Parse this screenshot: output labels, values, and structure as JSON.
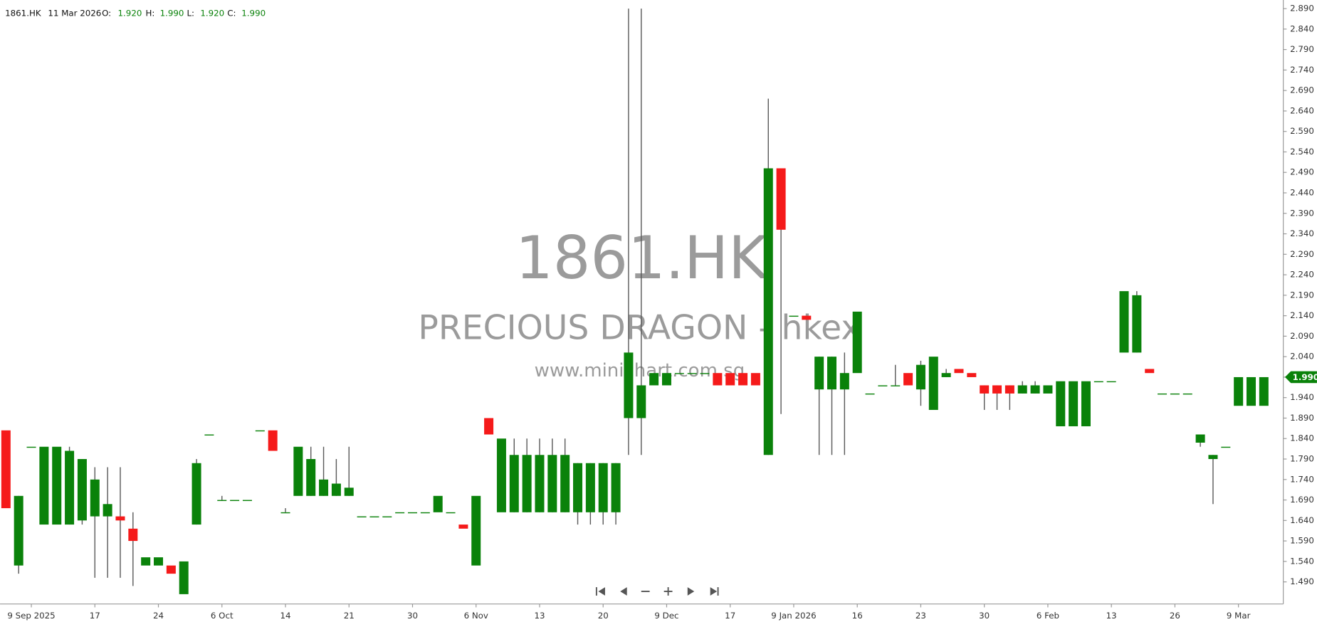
{
  "header": {
    "symbol": "1861.HK",
    "date": "11 Mar 2026",
    "open_label": "O:",
    "open": "1.920",
    "high_label": "H:",
    "high": "1.990",
    "low_label": "L:",
    "low": "1.920",
    "close_label": "C:",
    "close": "1.990"
  },
  "watermark": {
    "symbol": "1861.HK",
    "name": "PRECIOUS DRAGON - hkex",
    "site": "www.minichart.com.sg"
  },
  "chart_data": {
    "type": "candlestick",
    "categories": [
      null,
      null,
      "9 Sep 2025",
      null,
      null,
      null,
      null,
      "17",
      null,
      null,
      null,
      null,
      "24",
      null,
      null,
      null,
      null,
      "6 Oct",
      null,
      null,
      null,
      null,
      "14",
      null,
      null,
      null,
      null,
      "21",
      null,
      null,
      null,
      null,
      "30",
      null,
      null,
      null,
      null,
      "6 Nov",
      null,
      null,
      null,
      null,
      "13",
      null,
      null,
      null,
      null,
      "20",
      null,
      null,
      null,
      null,
      "9 Dec",
      null,
      null,
      null,
      null,
      "17",
      null,
      null,
      null,
      null,
      "9 Jan 2026",
      null,
      null,
      null,
      null,
      "16",
      null,
      null,
      null,
      null,
      "23",
      null,
      null,
      null,
      null,
      "30",
      null,
      null,
      null,
      null,
      "6 Feb",
      null,
      null,
      null,
      null,
      "13",
      null,
      null,
      null,
      null,
      "26",
      null,
      null,
      null,
      null,
      "9 Mar",
      null,
      null
    ],
    "open": [
      1.86,
      1.53,
      1.82,
      1.63,
      1.63,
      1.63,
      1.64,
      1.65,
      1.65,
      1.65,
      1.62,
      1.53,
      1.53,
      1.53,
      1.46,
      1.63,
      1.85,
      1.69,
      1.69,
      1.69,
      1.86,
      1.86,
      1.66,
      1.7,
      1.7,
      1.7,
      1.7,
      1.7,
      1.65,
      1.65,
      1.65,
      1.66,
      1.66,
      1.66,
      1.66,
      1.66,
      1.63,
      1.53,
      1.89,
      1.66,
      1.66,
      1.66,
      1.66,
      1.66,
      1.66,
      1.66,
      1.66,
      1.66,
      1.66,
      1.89,
      1.89,
      1.97,
      1.97,
      2.0,
      2.0,
      2.0,
      2.0,
      2.0,
      2.0,
      2.0,
      1.8,
      2.5,
      2.14,
      2.14,
      1.96,
      1.96,
      1.96,
      2.0,
      1.95,
      1.97,
      1.97,
      2.0,
      1.96,
      1.91,
      1.99,
      2.01,
      2.0,
      1.97,
      1.97,
      1.97,
      1.95,
      1.95,
      1.95,
      1.87,
      1.87,
      1.87,
      1.98,
      1.98,
      2.05,
      2.05,
      2.01,
      1.95,
      1.95,
      1.95,
      1.83,
      1.79,
      1.82,
      1.92,
      1.92,
      1.92
    ],
    "high": [
      1.86,
      1.7,
      1.82,
      1.82,
      1.82,
      1.82,
      1.79,
      1.77,
      1.77,
      1.77,
      1.66,
      1.55,
      1.55,
      1.53,
      1.54,
      1.79,
      1.85,
      1.7,
      1.69,
      1.69,
      1.86,
      1.86,
      1.67,
      1.82,
      1.82,
      1.82,
      1.79,
      1.82,
      1.65,
      1.65,
      1.65,
      1.66,
      1.66,
      1.66,
      1.7,
      1.66,
      1.63,
      1.7,
      1.89,
      1.84,
      1.84,
      1.84,
      1.84,
      1.84,
      1.84,
      1.78,
      1.78,
      1.78,
      1.78,
      2.89,
      2.89,
      2.0,
      2.0,
      2.0,
      2.0,
      2.0,
      2.0,
      2.0,
      2.0,
      2.0,
      2.67,
      2.5,
      2.14,
      2.14,
      2.04,
      2.04,
      2.05,
      2.15,
      1.95,
      1.97,
      2.02,
      2.0,
      2.03,
      2.04,
      2.01,
      2.01,
      2.0,
      1.97,
      1.97,
      1.97,
      1.98,
      1.98,
      1.97,
      1.98,
      1.98,
      1.98,
      1.98,
      1.98,
      2.2,
      2.2,
      2.01,
      1.95,
      1.95,
      1.95,
      1.85,
      1.8,
      1.82,
      1.99,
      1.99,
      1.99
    ],
    "low": [
      1.67,
      1.51,
      1.82,
      1.63,
      1.63,
      1.63,
      1.63,
      1.5,
      1.5,
      1.5,
      1.48,
      1.53,
      1.53,
      1.51,
      1.46,
      1.63,
      1.85,
      1.69,
      1.69,
      1.69,
      1.86,
      1.81,
      1.66,
      1.7,
      1.7,
      1.7,
      1.7,
      1.7,
      1.65,
      1.65,
      1.65,
      1.66,
      1.66,
      1.66,
      1.66,
      1.66,
      1.62,
      1.53,
      1.85,
      1.66,
      1.66,
      1.66,
      1.66,
      1.66,
      1.66,
      1.63,
      1.63,
      1.63,
      1.63,
      1.8,
      1.8,
      1.97,
      1.97,
      2.0,
      2.0,
      2.0,
      1.97,
      1.97,
      1.97,
      1.97,
      1.8,
      1.9,
      2.14,
      2.13,
      1.8,
      1.8,
      1.8,
      2.0,
      1.95,
      1.97,
      1.97,
      1.97,
      1.92,
      1.91,
      1.99,
      2.0,
      1.99,
      1.91,
      1.91,
      1.91,
      1.95,
      1.95,
      1.95,
      1.87,
      1.87,
      1.87,
      1.98,
      1.98,
      2.05,
      2.05,
      2.0,
      1.95,
      1.95,
      1.95,
      1.82,
      1.68,
      1.82,
      1.92,
      1.92,
      1.92
    ],
    "close": [
      1.67,
      1.7,
      1.82,
      1.82,
      1.82,
      1.81,
      1.79,
      1.74,
      1.68,
      1.64,
      1.59,
      1.55,
      1.55,
      1.51,
      1.54,
      1.78,
      1.85,
      1.69,
      1.69,
      1.69,
      1.86,
      1.81,
      1.66,
      1.82,
      1.79,
      1.74,
      1.73,
      1.72,
      1.65,
      1.65,
      1.65,
      1.66,
      1.66,
      1.66,
      1.7,
      1.66,
      1.62,
      1.7,
      1.85,
      1.84,
      1.8,
      1.8,
      1.8,
      1.8,
      1.8,
      1.78,
      1.78,
      1.78,
      1.78,
      2.05,
      1.97,
      2.0,
      2.0,
      2.0,
      2.0,
      2.0,
      1.97,
      1.97,
      1.97,
      1.97,
      2.5,
      2.35,
      2.14,
      2.13,
      2.04,
      2.04,
      2.0,
      2.15,
      1.95,
      1.97,
      1.97,
      1.97,
      2.02,
      2.04,
      2.0,
      2.0,
      1.99,
      1.95,
      1.95,
      1.95,
      1.97,
      1.97,
      1.97,
      1.98,
      1.98,
      1.98,
      1.98,
      1.98,
      2.2,
      2.19,
      2.0,
      1.95,
      1.95,
      1.95,
      1.85,
      1.8,
      1.82,
      1.99,
      1.99,
      1.99
    ],
    "colors": {
      "up": "#0a820a",
      "down": "#f51a1a",
      "wick": "#5a5a5a"
    },
    "ylim": [
      1.436,
      2.911
    ],
    "yticks": [
      {
        "value": 2.89,
        "label": "2.890"
      },
      {
        "value": 2.84,
        "label": "2.840"
      },
      {
        "value": 2.79,
        "label": "2.790"
      },
      {
        "value": 2.74,
        "label": "2.740"
      },
      {
        "value": 2.69,
        "label": "2.690"
      },
      {
        "value": 2.64,
        "label": "2.640"
      },
      {
        "value": 2.59,
        "label": "2.590"
      },
      {
        "value": 2.54,
        "label": "2.540"
      },
      {
        "value": 2.49,
        "label": "2.490"
      },
      {
        "value": 2.44,
        "label": "2.440"
      },
      {
        "value": 2.39,
        "label": "2.390"
      },
      {
        "value": 2.34,
        "label": "2.340"
      },
      {
        "value": 2.29,
        "label": "2.290"
      },
      {
        "value": 2.24,
        "label": "2.240"
      },
      {
        "value": 2.19,
        "label": "2.190"
      },
      {
        "value": 2.14,
        "label": "2.140"
      },
      {
        "value": 2.09,
        "label": "2.090"
      },
      {
        "value": 2.04,
        "label": "2.040"
      },
      {
        "value": 1.99,
        "label": "1.990"
      },
      {
        "value": 1.94,
        "label": "1.940"
      },
      {
        "value": 1.89,
        "label": "1.890"
      },
      {
        "value": 1.84,
        "label": "1.840"
      },
      {
        "value": 1.79,
        "label": "1.790"
      },
      {
        "value": 1.74,
        "label": "1.740"
      },
      {
        "value": 1.69,
        "label": "1.690"
      },
      {
        "value": 1.64,
        "label": "1.640"
      },
      {
        "value": 1.59,
        "label": "1.590"
      },
      {
        "value": 1.54,
        "label": "1.540"
      },
      {
        "value": 1.49,
        "label": "1.490"
      }
    ],
    "grid": false
  }
}
